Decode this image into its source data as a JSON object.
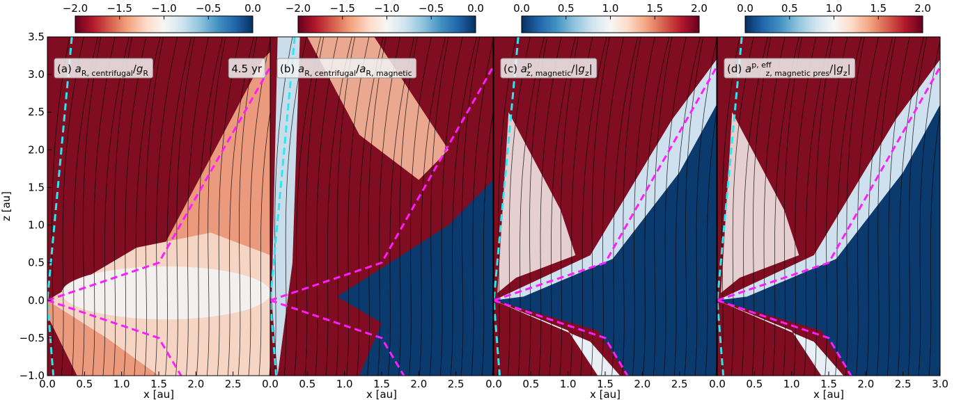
{
  "chart_data": [
    {
      "type": "heatmap",
      "title": [
        {
          "text": "(a) "
        },
        {
          "text": "a",
          "style": "i"
        },
        {
          "text": "R, centrifugal",
          "style": "sub"
        },
        {
          "text": "/"
        },
        {
          "text": "g",
          "style": "i"
        },
        {
          "text": "R",
          "style": "sub"
        }
      ],
      "annotation": "4.5 yr",
      "xlabel": "x [au]",
      "ylabel": "z [au]",
      "xlim": [
        0,
        3
      ],
      "ylim": [
        -1,
        3.5
      ],
      "xticks": [
        {
          "value": 0,
          "label": "0.0"
        },
        {
          "value": 0.5,
          "label": "0.5"
        },
        {
          "value": 1,
          "label": "1.0"
        },
        {
          "value": 1.5,
          "label": "1.5"
        },
        {
          "value": 2,
          "label": "2.0"
        },
        {
          "value": 2.5,
          "label": "2.5"
        }
      ],
      "yticks": [
        {
          "value": -1,
          "label": "−1.0"
        },
        {
          "value": -0.5,
          "label": "−0.5"
        },
        {
          "value": 0,
          "label": "0.0"
        },
        {
          "value": 0.5,
          "label": "0.5"
        },
        {
          "value": 1,
          "label": "1.0"
        },
        {
          "value": 1.5,
          "label": "1.5"
        },
        {
          "value": 2,
          "label": "2.0"
        },
        {
          "value": 2.5,
          "label": "2.5"
        },
        {
          "value": 3,
          "label": "3.0"
        },
        {
          "value": 3.5,
          "label": "3.5"
        }
      ],
      "colorbar": {
        "colormap": "RdBu",
        "lim": [
          -2,
          0
        ],
        "ticks": [
          {
            "value": -2,
            "label": "−2.0"
          },
          {
            "value": -1.5,
            "label": "−1.5"
          },
          {
            "value": -1,
            "label": "−1.0"
          },
          {
            "value": -0.5,
            "label": "−0.5"
          },
          {
            "value": 0,
            "label": "0.0"
          }
        ]
      }
    },
    {
      "type": "heatmap",
      "title": [
        {
          "text": "(b) "
        },
        {
          "text": "a",
          "style": "i"
        },
        {
          "text": "R, centrifugal",
          "style": "sub"
        },
        {
          "text": "/"
        },
        {
          "text": "a",
          "style": "i"
        },
        {
          "text": "R, magnetic",
          "style": "sub"
        }
      ],
      "xlabel": "x [au]",
      "xlim": [
        0,
        3
      ],
      "ylim": [
        -1,
        3.5
      ],
      "xticks": [
        {
          "value": 0,
          "label": "0.0"
        },
        {
          "value": 0.5,
          "label": "0.5"
        },
        {
          "value": 1,
          "label": "1.0"
        },
        {
          "value": 1.5,
          "label": "1.5"
        },
        {
          "value": 2,
          "label": "2.0"
        },
        {
          "value": 2.5,
          "label": "2.5"
        }
      ],
      "colorbar": {
        "colormap": "RdBu",
        "lim": [
          -2,
          0
        ],
        "ticks": [
          {
            "value": -2,
            "label": "−2.0"
          },
          {
            "value": -1.5,
            "label": "−1.5"
          },
          {
            "value": -1,
            "label": "−1.0"
          },
          {
            "value": -0.5,
            "label": "−0.5"
          },
          {
            "value": 0,
            "label": "0.0"
          }
        ]
      }
    },
    {
      "type": "heatmap",
      "title": [
        {
          "text": "(c) "
        },
        {
          "text": "a",
          "style": "i"
        },
        {
          "text": "p",
          "style": "sup"
        },
        {
          "text": "z, magnetic",
          "style": "sub"
        },
        {
          "text": "/|"
        },
        {
          "text": "g",
          "style": "i"
        },
        {
          "text": "z",
          "style": "sub"
        },
        {
          "text": "|"
        }
      ],
      "xlabel": "x [au]",
      "xlim": [
        0,
        3
      ],
      "ylim": [
        -1,
        3.5
      ],
      "xticks": [
        {
          "value": 0,
          "label": "0.0"
        },
        {
          "value": 0.5,
          "label": "0.5"
        },
        {
          "value": 1,
          "label": "1.0"
        },
        {
          "value": 1.5,
          "label": "1.5"
        },
        {
          "value": 2,
          "label": "2.0"
        },
        {
          "value": 2.5,
          "label": "2.5"
        }
      ],
      "colorbar": {
        "colormap": "RdBu_r",
        "lim": [
          0,
          2
        ],
        "ticks": [
          {
            "value": 0,
            "label": "0.0"
          },
          0.5,
          {
            "value": 1,
            "label": "1.0"
          },
          1.5,
          {
            "value": 2,
            "label": "2.0"
          }
        ]
      }
    },
    {
      "type": "heatmap",
      "title": [
        {
          "text": "(d) "
        },
        {
          "text": "a",
          "style": "i"
        },
        {
          "text": "p, eff",
          "style": "sup"
        },
        {
          "text": "z, magnetic pres",
          "style": "sub"
        },
        {
          "text": "/|"
        },
        {
          "text": "g",
          "style": "i"
        },
        {
          "text": "z",
          "style": "sub"
        },
        {
          "text": "|"
        }
      ],
      "xlabel": "x [au]",
      "xlim": [
        0,
        3
      ],
      "ylim": [
        -1,
        3.5
      ],
      "xticks": [
        {
          "value": 0,
          "label": "0.0"
        },
        {
          "value": 0.5,
          "label": "0.5"
        },
        {
          "value": 1,
          "label": "1.0"
        },
        {
          "value": 1.5,
          "label": "1.5"
        },
        {
          "value": 2,
          "label": "2.0"
        },
        {
          "value": 2.5,
          "label": "2.5"
        },
        {
          "value": 3,
          "label": "3.0"
        }
      ],
      "colorbar": {
        "colormap": "RdBu_r",
        "lim": [
          0,
          2
        ],
        "ticks": [
          {
            "value": 0,
            "label": "0.0"
          },
          0.5,
          {
            "value": 1,
            "label": "1.0"
          },
          1.5,
          {
            "value": 2,
            "label": "2.0"
          }
        ]
      }
    }
  ]
}
